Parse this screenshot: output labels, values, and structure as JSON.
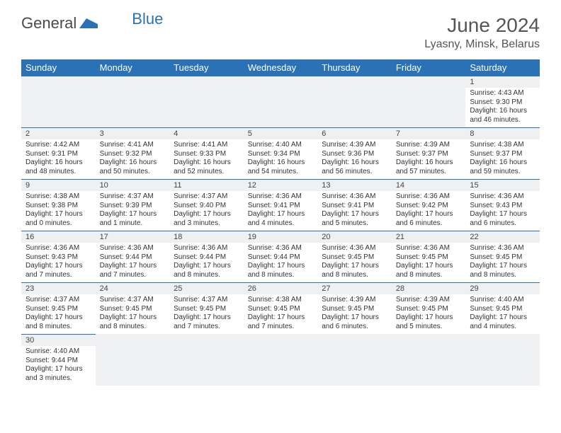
{
  "logo": {
    "text1": "General",
    "text2": "Blue"
  },
  "title": "June 2024",
  "location": "Lyasny, Minsk, Belarus",
  "dayHeaders": [
    "Sunday",
    "Monday",
    "Tuesday",
    "Wednesday",
    "Thursday",
    "Friday",
    "Saturday"
  ],
  "colors": {
    "headerBg": "#2a72b5",
    "dayNumBg": "#eef0f2",
    "border": "#2a72b5",
    "text": "#333333"
  },
  "layout": {
    "startWeekday": 6,
    "daysInMonth": 30
  },
  "days": {
    "1": {
      "sunrise": "4:43 AM",
      "sunset": "9:30 PM",
      "daylight": "16 hours and 46 minutes."
    },
    "2": {
      "sunrise": "4:42 AM",
      "sunset": "9:31 PM",
      "daylight": "16 hours and 48 minutes."
    },
    "3": {
      "sunrise": "4:41 AM",
      "sunset": "9:32 PM",
      "daylight": "16 hours and 50 minutes."
    },
    "4": {
      "sunrise": "4:41 AM",
      "sunset": "9:33 PM",
      "daylight": "16 hours and 52 minutes."
    },
    "5": {
      "sunrise": "4:40 AM",
      "sunset": "9:34 PM",
      "daylight": "16 hours and 54 minutes."
    },
    "6": {
      "sunrise": "4:39 AM",
      "sunset": "9:36 PM",
      "daylight": "16 hours and 56 minutes."
    },
    "7": {
      "sunrise": "4:39 AM",
      "sunset": "9:37 PM",
      "daylight": "16 hours and 57 minutes."
    },
    "8": {
      "sunrise": "4:38 AM",
      "sunset": "9:37 PM",
      "daylight": "16 hours and 59 minutes."
    },
    "9": {
      "sunrise": "4:38 AM",
      "sunset": "9:38 PM",
      "daylight": "17 hours and 0 minutes."
    },
    "10": {
      "sunrise": "4:37 AM",
      "sunset": "9:39 PM",
      "daylight": "17 hours and 1 minute."
    },
    "11": {
      "sunrise": "4:37 AM",
      "sunset": "9:40 PM",
      "daylight": "17 hours and 3 minutes."
    },
    "12": {
      "sunrise": "4:36 AM",
      "sunset": "9:41 PM",
      "daylight": "17 hours and 4 minutes."
    },
    "13": {
      "sunrise": "4:36 AM",
      "sunset": "9:41 PM",
      "daylight": "17 hours and 5 minutes."
    },
    "14": {
      "sunrise": "4:36 AM",
      "sunset": "9:42 PM",
      "daylight": "17 hours and 6 minutes."
    },
    "15": {
      "sunrise": "4:36 AM",
      "sunset": "9:43 PM",
      "daylight": "17 hours and 6 minutes."
    },
    "16": {
      "sunrise": "4:36 AM",
      "sunset": "9:43 PM",
      "daylight": "17 hours and 7 minutes."
    },
    "17": {
      "sunrise": "4:36 AM",
      "sunset": "9:44 PM",
      "daylight": "17 hours and 7 minutes."
    },
    "18": {
      "sunrise": "4:36 AM",
      "sunset": "9:44 PM",
      "daylight": "17 hours and 8 minutes."
    },
    "19": {
      "sunrise": "4:36 AM",
      "sunset": "9:44 PM",
      "daylight": "17 hours and 8 minutes."
    },
    "20": {
      "sunrise": "4:36 AM",
      "sunset": "9:45 PM",
      "daylight": "17 hours and 8 minutes."
    },
    "21": {
      "sunrise": "4:36 AM",
      "sunset": "9:45 PM",
      "daylight": "17 hours and 8 minutes."
    },
    "22": {
      "sunrise": "4:36 AM",
      "sunset": "9:45 PM",
      "daylight": "17 hours and 8 minutes."
    },
    "23": {
      "sunrise": "4:37 AM",
      "sunset": "9:45 PM",
      "daylight": "17 hours and 8 minutes."
    },
    "24": {
      "sunrise": "4:37 AM",
      "sunset": "9:45 PM",
      "daylight": "17 hours and 8 minutes."
    },
    "25": {
      "sunrise": "4:37 AM",
      "sunset": "9:45 PM",
      "daylight": "17 hours and 7 minutes."
    },
    "26": {
      "sunrise": "4:38 AM",
      "sunset": "9:45 PM",
      "daylight": "17 hours and 7 minutes."
    },
    "27": {
      "sunrise": "4:39 AM",
      "sunset": "9:45 PM",
      "daylight": "17 hours and 6 minutes."
    },
    "28": {
      "sunrise": "4:39 AM",
      "sunset": "9:45 PM",
      "daylight": "17 hours and 5 minutes."
    },
    "29": {
      "sunrise": "4:40 AM",
      "sunset": "9:45 PM",
      "daylight": "17 hours and 4 minutes."
    },
    "30": {
      "sunrise": "4:40 AM",
      "sunset": "9:44 PM",
      "daylight": "17 hours and 3 minutes."
    }
  },
  "labels": {
    "sunrisePrefix": "Sunrise: ",
    "sunsetPrefix": "Sunset: ",
    "daylightPrefix": "Daylight: "
  }
}
